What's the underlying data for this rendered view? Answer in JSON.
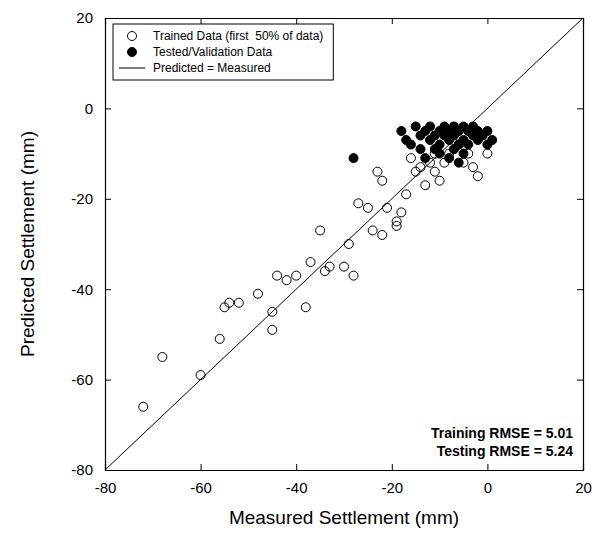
{
  "chart_data": {
    "type": "scatter",
    "x_label": "Measured Settlement (mm)",
    "y_label": "Predicted Settlement (mm)",
    "xlim": [
      -80,
      20
    ],
    "ylim": [
      -80,
      20
    ],
    "xticks": [
      -80,
      -60,
      -40,
      -20,
      0,
      20
    ],
    "yticks": [
      -80,
      -60,
      -40,
      -20,
      0,
      20
    ],
    "grid": false,
    "legend": "upper-left",
    "series": [
      {
        "name": "Trained Data (first  50% of data)",
        "type": "scatter",
        "marker": "open-circle",
        "color": "#000000",
        "x": [
          -72,
          -68,
          -60,
          -56,
          -55,
          -54,
          -52,
          -48,
          -45,
          -45,
          -44,
          -42,
          -40,
          -38,
          -37,
          -35,
          -34,
          -33,
          -30,
          -29,
          -28,
          -27,
          -25,
          -24,
          -23,
          -22,
          -22,
          -21,
          -19,
          -19,
          -18,
          -17,
          -16,
          -14,
          -13,
          -12,
          -11,
          -10,
          -9,
          -8,
          -7,
          -6,
          -5,
          -4,
          -2,
          0,
          -15,
          -11,
          -3
        ],
        "values": [
          -66,
          -55,
          -59,
          -51,
          -44,
          -43,
          -43,
          -41,
          -49,
          -45,
          -37,
          -38,
          -37,
          -44,
          -34,
          -27,
          -36,
          -35,
          -35,
          -30,
          -37,
          -21,
          -22,
          -27,
          -14,
          -16,
          -28,
          -22,
          -26,
          -25,
          -23,
          -19,
          -11,
          -13,
          -17,
          -12,
          -14,
          -16,
          -12,
          -10,
          -9,
          -8,
          -12,
          -10,
          -15,
          -10,
          -14,
          -10,
          -13
        ]
      },
      {
        "name": "Tested/Validation Data",
        "type": "scatter",
        "marker": "filled-circle",
        "color": "#000000",
        "x": [
          -28,
          -18,
          -16,
          -15,
          -14,
          -14,
          -13,
          -12,
          -12,
          -11,
          -11,
          -10,
          -10,
          -9,
          -9,
          -8,
          -8,
          -8,
          -7,
          -7,
          -7,
          -6,
          -6,
          -5,
          -5,
          -5,
          -4,
          -4,
          -3,
          -3,
          -2,
          -2,
          -1,
          0,
          0,
          -13,
          -10,
          -6,
          1,
          -17
        ],
        "values": [
          -11,
          -5,
          -8,
          -4,
          -6,
          -9,
          -5,
          -7,
          -4,
          -6,
          -9,
          -5,
          -8,
          -4,
          -6,
          -7,
          -5,
          -11,
          -4,
          -6,
          -9,
          -5,
          -8,
          -4,
          -7,
          -10,
          -5,
          -8,
          -6,
          -4,
          -7,
          -5,
          -6,
          -5,
          -8,
          -11,
          -10,
          -12,
          -7,
          -7
        ]
      },
      {
        "name": "Predicted = Measured",
        "type": "line",
        "line_style": "solid",
        "color": "#000000",
        "x": [
          -80,
          20
        ],
        "values": [
          -80,
          20
        ]
      }
    ],
    "annotations": [
      {
        "text": "Training RMSE = 5.01"
      },
      {
        "text": "Testing RMSE = 5.24"
      }
    ]
  }
}
